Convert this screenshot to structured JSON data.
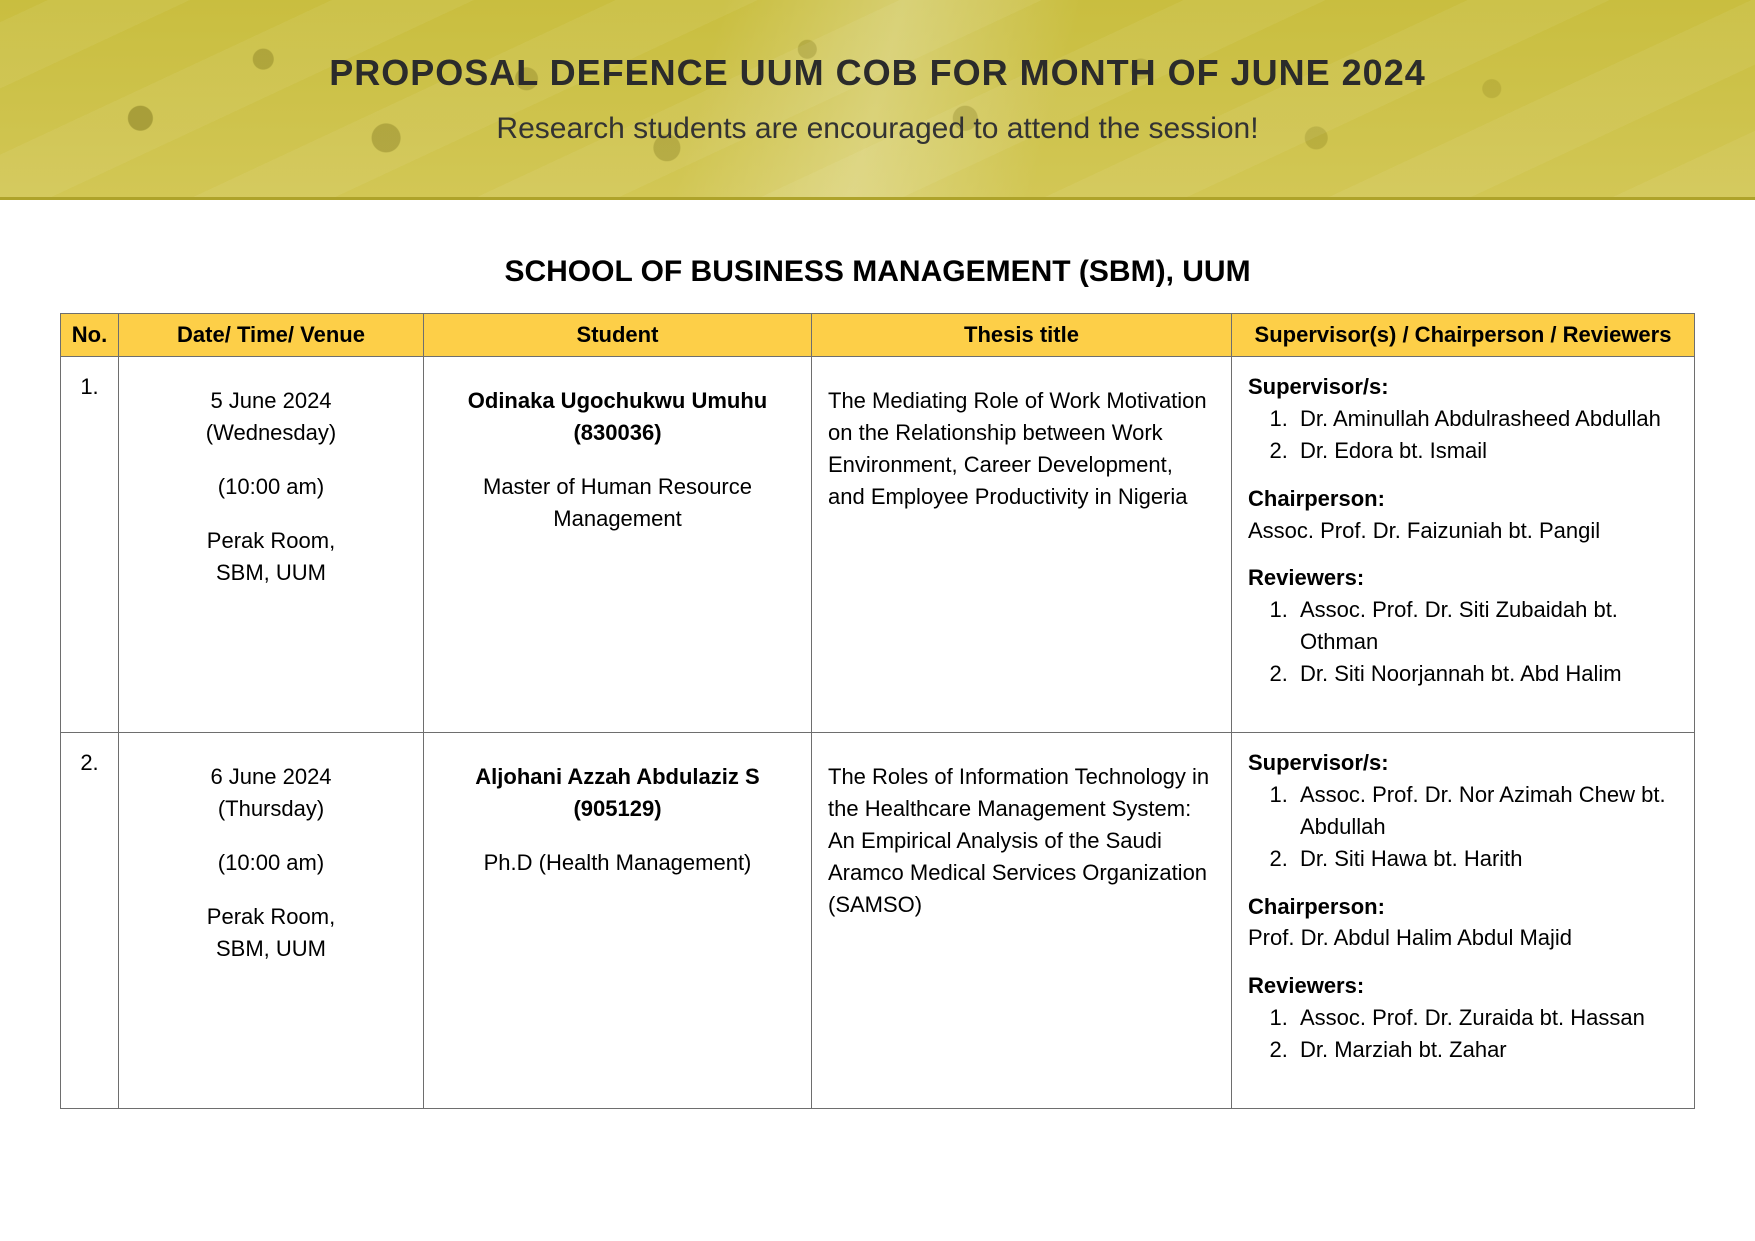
{
  "banner": {
    "title": "PROPOSAL DEFENCE UUM COB FOR MONTH OF JUNE 2024",
    "subtitle": "Research students are encouraged to attend the session!"
  },
  "section_title": "SCHOOL OF BUSINESS MANAGEMENT (SBM), UUM",
  "columns": {
    "no": "No.",
    "date": "Date/ Time/ Venue",
    "student": "Student",
    "thesis": "Thesis title",
    "sup": "Supervisor(s) / Chairperson / Reviewers"
  },
  "labels": {
    "supervisors": "Supervisor/s:",
    "chairperson": "Chairperson:",
    "reviewers": "Reviewers:"
  },
  "rows": [
    {
      "no": "1.",
      "date": "5 June 2024",
      "day": "(Wednesday)",
      "time": "(10:00 am)",
      "venue1": "Perak Room,",
      "venue2": "SBM, UUM",
      "student_name": "Odinaka Ugochukwu Umuhu",
      "student_id": "(830036)",
      "programme": "Master of Human Resource Management",
      "thesis": "The Mediating Role of Work Motivation on the Relationship between Work Environment, Career Development, and Employee Productivity in Nigeria",
      "supervisors": [
        "Dr. Aminullah Abdulrasheed Abdullah",
        "Dr. Edora bt. Ismail"
      ],
      "chairperson": "Assoc. Prof. Dr. Faizuniah bt. Pangil",
      "reviewers": [
        "Assoc. Prof. Dr. Siti Zubaidah bt. Othman",
        "Dr. Siti Noorjannah bt. Abd Halim"
      ]
    },
    {
      "no": "2.",
      "date": "6 June 2024",
      "day": "(Thursday)",
      "time": "(10:00 am)",
      "venue1": "Perak Room,",
      "venue2": "SBM, UUM",
      "student_name": "Aljohani Azzah Abdulaziz S",
      "student_id": "(905129)",
      "programme": "Ph.D (Health Management)",
      "thesis": "The Roles of Information Technology in the Healthcare Management System: An Empirical Analysis of the Saudi Aramco Medical Services Organization (SAMSO)",
      "supervisors": [
        "Assoc. Prof. Dr. Nor Azimah Chew bt. Abdullah",
        "Dr. Siti Hawa bt. Harith"
      ],
      "chairperson": "Prof. Dr. Abdul Halim Abdul Majid",
      "reviewers": [
        "Assoc. Prof. Dr. Zuraida bt. Hassan",
        "Dr. Marziah bt. Zahar"
      ]
    }
  ],
  "style": {
    "header_bg": "#fdcf48",
    "border_color": "#6e6e6e",
    "banner_gradient_top": "#c9be3f",
    "banner_gradient_bottom": "#d2c755",
    "title_fontsize_pt": 27,
    "subtitle_fontsize_pt": 22,
    "section_title_fontsize_pt": 22,
    "cell_fontsize_pt": 16
  }
}
